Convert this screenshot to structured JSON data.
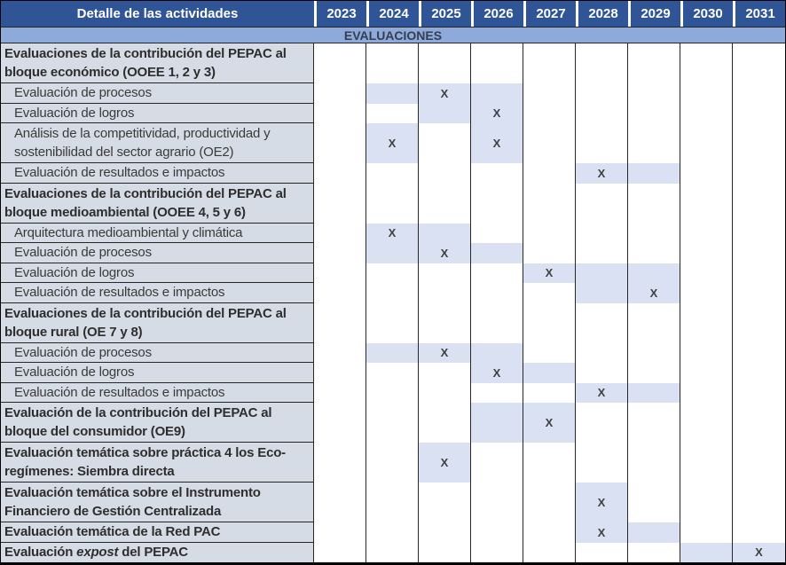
{
  "colors": {
    "header_bg": "#2F5597",
    "header_text": "#FFFFFF",
    "banner_bg": "#8EAADB",
    "banner_text": "#333F50",
    "label_bg": "#D6DCE5",
    "shade": "#D9E1F3",
    "mark": "#404040"
  },
  "header": {
    "detail_label": "Detalle de las actividades",
    "years": [
      "2023",
      "2024",
      "2025",
      "2026",
      "2027",
      "2028",
      "2029",
      "2030",
      "2031"
    ]
  },
  "banner": "EVALUACIONES",
  "legend": {
    "mark_symbol": "X"
  },
  "rows": [
    {
      "label": "Evaluaciones de la contribución del PEPAC al bloque económico (OOEE 1, 2 y 3)",
      "bold": true,
      "indent": false,
      "lines": 2,
      "marks": {}
    },
    {
      "label": "Evaluación de procesos",
      "bold": false,
      "indent": true,
      "lines": 1,
      "marks": {
        "2024": "s",
        "2025": "x",
        "2026": "s"
      }
    },
    {
      "label": "Evaluación de logros",
      "bold": false,
      "indent": true,
      "lines": 1,
      "marks": {
        "2025": "s",
        "2026": "x"
      }
    },
    {
      "label": "Análisis de la competitividad, productividad y sostenibilidad del sector agrario (OE2)",
      "bold": false,
      "indent": true,
      "lines": 2,
      "marks": {
        "2024": "x",
        "2026": "x"
      }
    },
    {
      "label": "Evaluación de resultados e impactos",
      "bold": false,
      "indent": true,
      "lines": 1,
      "marks": {
        "2028": "x",
        "2029": "s"
      }
    },
    {
      "label": "Evaluaciones de la contribución del PEPAC al bloque medioambiental (OOEE 4, 5 y 6)",
      "bold": true,
      "indent": false,
      "lines": 2,
      "marks": {}
    },
    {
      "label": "Arquitectura medioambiental y climática",
      "bold": false,
      "indent": true,
      "lines": 1,
      "marks": {
        "2024": "x",
        "2025": "s"
      }
    },
    {
      "label": "Evaluación de procesos",
      "bold": false,
      "indent": true,
      "lines": 1,
      "marks": {
        "2024": "s",
        "2025": "x",
        "2026": "s"
      }
    },
    {
      "label": "Evaluación de logros",
      "bold": false,
      "indent": true,
      "lines": 1,
      "marks": {
        "2027": "x",
        "2028": "s",
        "2029": "s"
      }
    },
    {
      "label": "Evaluación de resultados e impactos",
      "bold": false,
      "indent": true,
      "lines": 1,
      "marks": {
        "2028": "s",
        "2029": "x"
      }
    },
    {
      "label": "Evaluaciones de la contribución del PEPAC al bloque rural (OE 7 y 8)",
      "bold": true,
      "indent": false,
      "lines": 2,
      "marks": {}
    },
    {
      "label": "Evaluación de procesos",
      "bold": false,
      "indent": true,
      "lines": 1,
      "marks": {
        "2024": "s",
        "2025": "x",
        "2026": "s"
      }
    },
    {
      "label": "Evaluación de logros",
      "bold": false,
      "indent": true,
      "lines": 1,
      "marks": {
        "2026": "x",
        "2027": "s"
      }
    },
    {
      "label": "Evaluación de resultados e impactos",
      "bold": false,
      "indent": true,
      "lines": 1,
      "marks": {
        "2028": "x",
        "2029": "s"
      }
    },
    {
      "label": "Evaluación de la contribución del PEPAC al bloque del consumidor (OE9)",
      "bold": true,
      "indent": false,
      "lines": 2,
      "marks": {
        "2026": "s",
        "2027": "x"
      }
    },
    {
      "label": "Evaluación temática sobre práctica 4 los Eco-regímenes: Siembra directa",
      "bold": true,
      "indent": false,
      "lines": 2,
      "marks": {
        "2025": "x"
      }
    },
    {
      "label": "Evaluación temática sobre el Instrumento Financiero de Gestión Centralizada",
      "bold": true,
      "indent": false,
      "lines": 2,
      "marks": {
        "2028": "x"
      }
    },
    {
      "label": "Evaluación temática de la Red PAC",
      "bold": true,
      "indent": false,
      "lines": 1,
      "marks": {
        "2028": "x",
        "2029": "s"
      }
    },
    {
      "label_runs": [
        {
          "t": "Evaluación ",
          "i": false
        },
        {
          "t": "expost",
          "i": true
        },
        {
          "t": " del PEPAC",
          "i": false
        }
      ],
      "bold": true,
      "indent": false,
      "lines": 1,
      "marks": {
        "2030": "s",
        "2031": "x"
      }
    }
  ]
}
